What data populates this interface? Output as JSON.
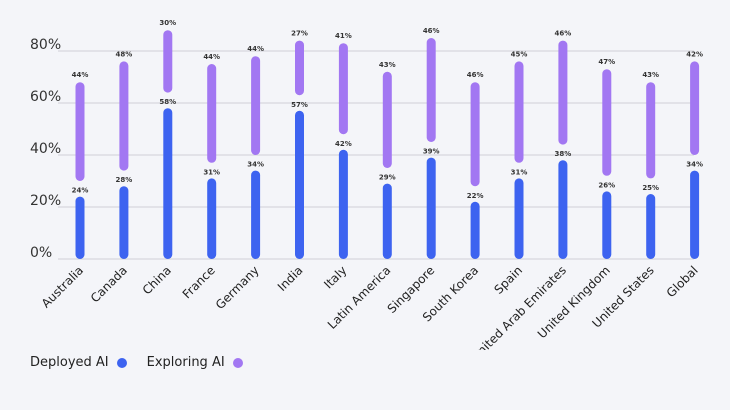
{
  "chart_data": {
    "type": "bar",
    "stacked": true,
    "categories": [
      "Australia",
      "Canada",
      "China",
      "France",
      "Germany",
      "India",
      "Italy",
      "Latin America",
      "Singapore",
      "South Korea",
      "Spain",
      "United Arab Emirates",
      "United Kingdom",
      "United States",
      "Global"
    ],
    "series": [
      {
        "name": "Deployed AI",
        "color": "#3d63f0",
        "values": [
          24,
          28,
          58,
          31,
          34,
          57,
          42,
          29,
          39,
          22,
          31,
          38,
          26,
          25,
          34
        ]
      },
      {
        "name": "Exploring AI",
        "color": "#a277f2",
        "values": [
          44,
          48,
          30,
          44,
          44,
          27,
          41,
          43,
          46,
          46,
          45,
          46,
          47,
          43,
          42
        ]
      }
    ],
    "yticks": [
      "0%",
      "20%",
      "40%",
      "60%",
      "80%"
    ],
    "ylim": [
      0,
      80
    ],
    "grid": true,
    "legend_position": "bottom-left"
  },
  "legend": {
    "deployed": "Deployed AI",
    "exploring": "Exploring AI"
  }
}
